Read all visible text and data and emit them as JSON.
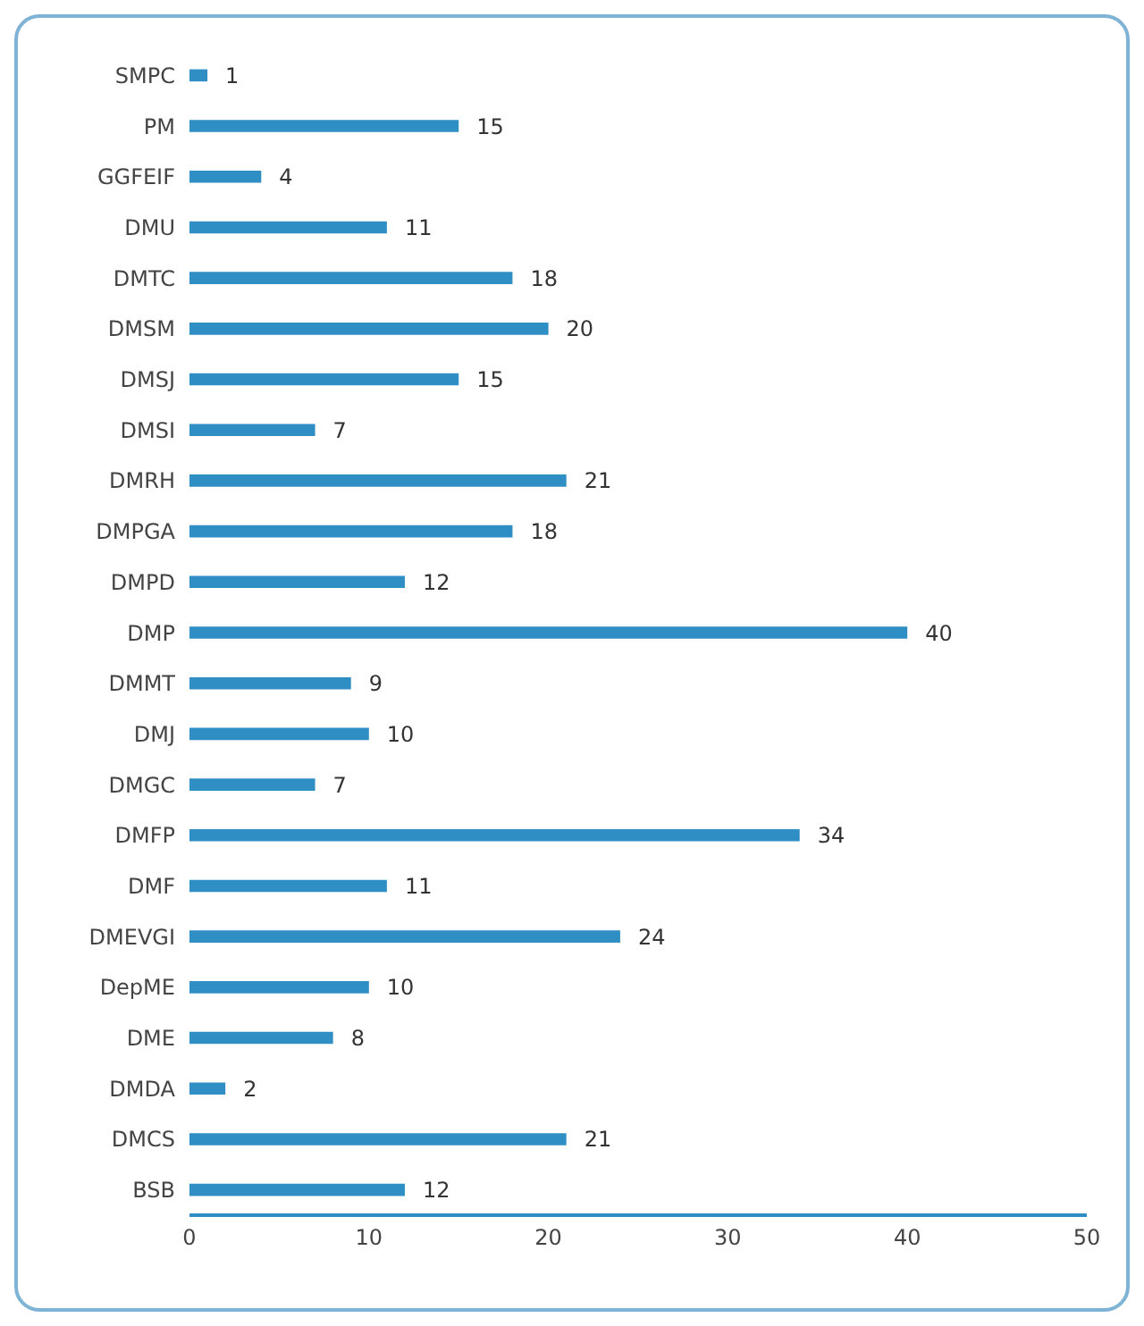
{
  "chart_data": {
    "type": "bar",
    "orientation": "horizontal",
    "categories": [
      "SMPC",
      "PM",
      "GGFEIF",
      "DMU",
      "DMTC",
      "DMSM",
      "DMSJ",
      "DMSI",
      "DMRH",
      "DMPGA",
      "DMPD",
      "DMP",
      "DMMT",
      "DMJ",
      "DMGC",
      "DMFP",
      "DMF",
      "DMEVGI",
      "DepME",
      "DME",
      "DMDA",
      "DMCS",
      "BSB"
    ],
    "values": [
      1,
      15,
      4,
      11,
      18,
      20,
      15,
      7,
      21,
      18,
      12,
      40,
      9,
      10,
      7,
      34,
      11,
      24,
      10,
      8,
      2,
      21,
      12
    ],
    "color": "#2f8ec4",
    "xlim": [
      0,
      50
    ],
    "xticks": [
      0,
      10,
      20,
      30,
      40,
      50
    ],
    "data_labels": true,
    "grid": false
  }
}
